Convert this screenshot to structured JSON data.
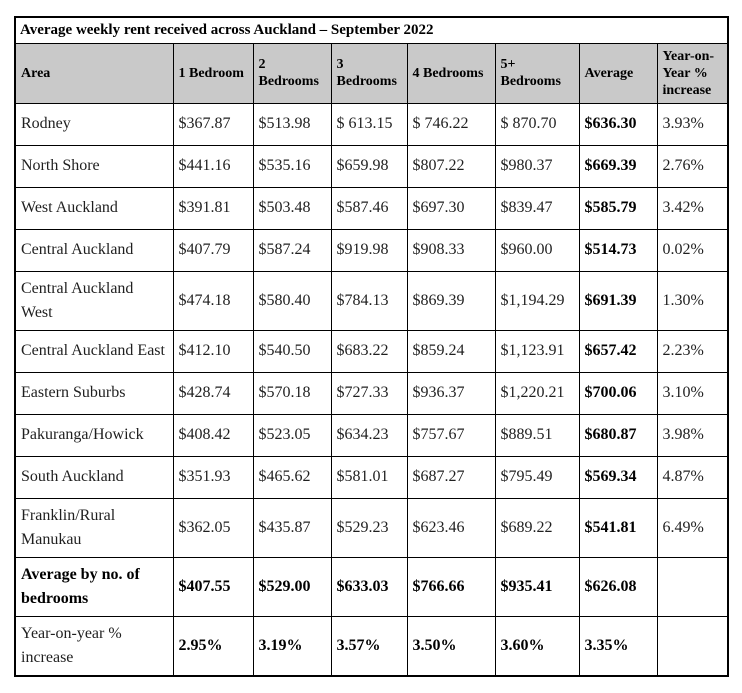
{
  "title": "Average weekly rent received across Auckland – September 2022",
  "columns": [
    "Area",
    "1 Bedroom",
    "2 Bedrooms",
    "3 Bedrooms",
    "4 Bedrooms",
    "5+ Bedrooms",
    "Average",
    "Year-on-Year % increase"
  ],
  "rows": [
    [
      "Rodney",
      "$367.87",
      "$513.98",
      "$ 613.15",
      "$ 746.22",
      "$ 870.70",
      "$636.30",
      "3.93%"
    ],
    [
      "North Shore",
      "$441.16",
      "$535.16",
      "$659.98",
      "$807.22",
      "$980.37",
      "$669.39",
      "2.76%"
    ],
    [
      "West Auckland",
      "$391.81",
      "$503.48",
      "$587.46",
      "$697.30",
      "$839.47",
      "$585.79",
      "3.42%"
    ],
    [
      "Central Auckland",
      "$407.79",
      "$587.24",
      "$919.98",
      "$908.33",
      "$960.00",
      "$514.73",
      "0.02%"
    ],
    [
      "Central Auckland West",
      "$474.18",
      "$580.40",
      "$784.13",
      "$869.39",
      "$1,194.29",
      "$691.39",
      "1.30%"
    ],
    [
      "Central Auckland East",
      "$412.10",
      "$540.50",
      "$683.22",
      "$859.24",
      "$1,123.91",
      "$657.42",
      "2.23%"
    ],
    [
      "Eastern Suburbs",
      "$428.74",
      "$570.18",
      "$727.33",
      "$936.37",
      "$1,220.21",
      "$700.06",
      "3.10%"
    ],
    [
      "Pakuranga/Howick",
      "$408.42",
      "$523.05",
      "$634.23",
      "$757.67",
      "$889.51",
      "$680.87",
      "3.98%"
    ],
    [
      "South Auckland",
      "$351.93",
      "$465.62",
      "$581.01",
      "$687.27",
      "$795.49",
      "$569.34",
      "4.87%"
    ],
    [
      "Franklin/Rural Manukau",
      "$362.05",
      "$435.87",
      "$529.23",
      "$623.46",
      "$689.22",
      "$541.81",
      "6.49%"
    ]
  ],
  "summary_rows": [
    {
      "label": "Average by no. of bedrooms",
      "label_bold": true,
      "values": [
        "$407.55",
        "$529.00",
        "$633.03",
        "$766.66",
        "$935.41",
        "$626.08",
        ""
      ]
    },
    {
      "label": "Year-on-year % increase",
      "label_bold": false,
      "values": [
        "2.95%",
        "3.19%",
        "3.57%",
        "3.50%",
        "3.60%",
        "3.35%",
        ""
      ]
    }
  ],
  "colors": {
    "header_bg": "#c9c9c9",
    "border": "#000000",
    "title_bg": "#ffffff"
  }
}
